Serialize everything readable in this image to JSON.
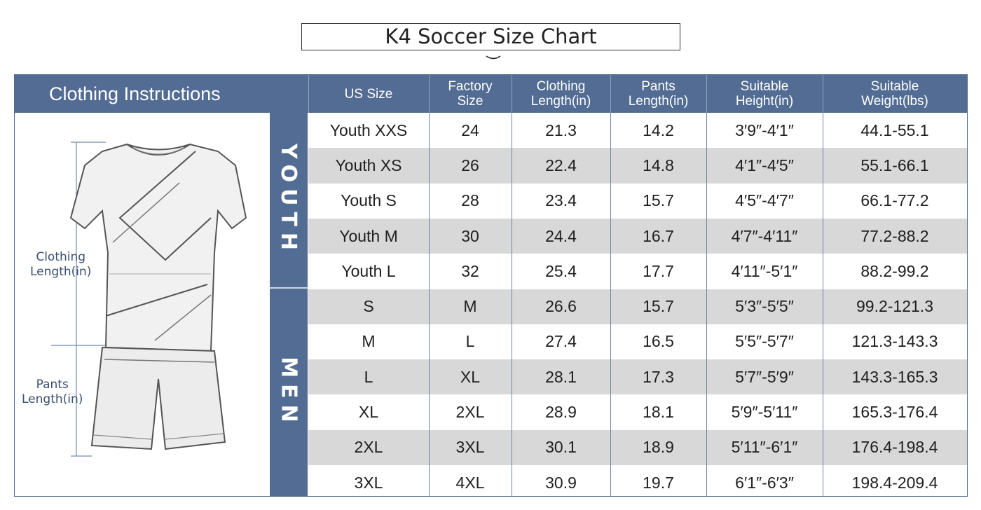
{
  "title": "K4 Soccer Size Chart",
  "header": {
    "left_label": "Clothing Instructions",
    "columns": [
      "US Size",
      "Factory\nSize",
      "Clothing\nLength(in)",
      "Pants\nLength(in)",
      "Suitable\nHeight(in)",
      "Suitable\nWeight(lbs)"
    ]
  },
  "figure": {
    "clothing_label": "Clothing\nLength(in)",
    "pants_label": "Pants\nLength(in)"
  },
  "groups": [
    {
      "name": "YOUTH",
      "rows": [
        [
          "Youth XXS",
          "24",
          "21.3",
          "14.2",
          "3′9″-4′1″",
          "44.1-55.1"
        ],
        [
          "Youth XS",
          "26",
          "22.4",
          "14.8",
          "4′1″-4′5″",
          "55.1-66.1"
        ],
        [
          "Youth S",
          "28",
          "23.4",
          "15.7",
          "4′5″-4′7″",
          "66.1-77.2"
        ],
        [
          "Youth M",
          "30",
          "24.4",
          "16.7",
          "4′7″-4′11″",
          "77.2-88.2"
        ],
        [
          "Youth L",
          "32",
          "25.4",
          "17.7",
          "4′11″-5′1″",
          "88.2-99.2"
        ]
      ]
    },
    {
      "name": "MEN",
      "rows": [
        [
          "S",
          "M",
          "26.6",
          "15.7",
          "5′3″-5′5″",
          "99.2-121.3"
        ],
        [
          "M",
          "L",
          "27.4",
          "16.5",
          "5′5″-5′7″",
          "121.3-143.3"
        ],
        [
          "L",
          "XL",
          "28.1",
          "17.3",
          "5′7″-5′9″",
          "143.3-165.3"
        ],
        [
          "XL",
          "2XL",
          "28.9",
          "18.1",
          "5′9″-5′11″",
          "165.3-176.4"
        ],
        [
          "2XL",
          "3XL",
          "30.1",
          "18.9",
          "5′11″-6′1″",
          "176.4-198.4"
        ],
        [
          "3XL",
          "4XL",
          "30.9",
          "19.7",
          "6′1″-6′3″",
          "198.4-209.4"
        ]
      ]
    }
  ],
  "colors": {
    "header_blue": "#526c93",
    "row_shade": "#d8d8d8",
    "label_text": "#3a4f70"
  }
}
